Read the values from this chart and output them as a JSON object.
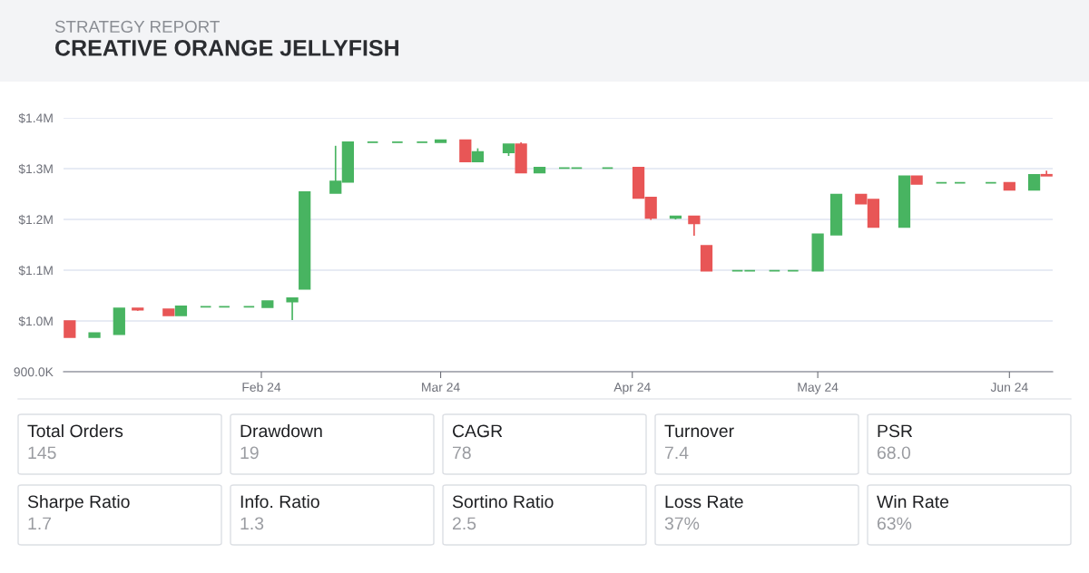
{
  "chart_data": [
    {
      "type": "candlestick",
      "subtitle": "STRATEGY REPORT",
      "title": "CREATIVE ORANGE JELLYFISH",
      "x": [
        "2024-01-01",
        "2024-01-05",
        "2024-01-09",
        "2024-01-12",
        "2024-01-17",
        "2024-01-19",
        "2024-01-23",
        "2024-01-26",
        "2024-01-30",
        "2024-02-02",
        "2024-02-06",
        "2024-02-08",
        "2024-02-13",
        "2024-02-15",
        "2024-02-19",
        "2024-02-23",
        "2024-02-27",
        "2024-03-01",
        "2024-03-05",
        "2024-03-07",
        "2024-03-12",
        "2024-03-14",
        "2024-03-17",
        "2024-03-21",
        "2024-03-23",
        "2024-03-28",
        "2024-04-02",
        "2024-04-04",
        "2024-04-08",
        "2024-04-11",
        "2024-04-13",
        "2024-04-18",
        "2024-04-20",
        "2024-04-24",
        "2024-04-27",
        "2024-05-01",
        "2024-05-04",
        "2024-05-08",
        "2024-05-10",
        "2024-05-15",
        "2024-05-17",
        "2024-05-21",
        "2024-05-24",
        "2024-05-29",
        "2024-06-01",
        "2024-06-05",
        "2024-06-07"
      ],
      "ohlc": [
        [
          1000000,
          1000000,
          968000,
          968000
        ],
        [
          968000,
          976000,
          968000,
          976000
        ],
        [
          974000,
          1025000,
          974000,
          1025000
        ],
        [
          1025000,
          1025000,
          1020000,
          1022000
        ],
        [
          1023000,
          1023000,
          1011000,
          1011000
        ],
        [
          1011000,
          1029000,
          1011000,
          1029000
        ],
        [
          1028000,
          1028000,
          1028000,
          1028000
        ],
        [
          1028000,
          1028000,
          1028000,
          1028000
        ],
        [
          1028000,
          1028000,
          1028000,
          1028000
        ],
        [
          1027000,
          1039000,
          1027000,
          1039000
        ],
        [
          1038000,
          1045000,
          1002000,
          1045000
        ],
        [
          1063000,
          1254000,
          1063000,
          1254000
        ],
        [
          1252000,
          1345000,
          1252000,
          1275000
        ],
        [
          1274000,
          1352000,
          1274000,
          1352000
        ],
        [
          1352000,
          1352000,
          1352000,
          1352000
        ],
        [
          1352000,
          1352000,
          1352000,
          1352000
        ],
        [
          1352000,
          1352000,
          1352000,
          1352000
        ],
        [
          1352000,
          1356000,
          1352000,
          1356000
        ],
        [
          1356000,
          1356000,
          1314000,
          1314000
        ],
        [
          1314000,
          1340000,
          1314000,
          1333000
        ],
        [
          1332000,
          1348000,
          1325000,
          1348000
        ],
        [
          1348000,
          1352000,
          1292000,
          1292000
        ],
        [
          1292000,
          1302000,
          1292000,
          1302000
        ],
        [
          1301000,
          1301000,
          1301000,
          1301000
        ],
        [
          1301000,
          1301000,
          1301000,
          1301000
        ],
        [
          1301000,
          1301000,
          1301000,
          1301000
        ],
        [
          1302000,
          1302000,
          1242000,
          1242000
        ],
        [
          1243000,
          1243000,
          1199000,
          1203000
        ],
        [
          1203000,
          1206000,
          1200000,
          1206000
        ],
        [
          1206000,
          1206000,
          1168000,
          1192000
        ],
        [
          1148000,
          1148000,
          1099000,
          1099000
        ],
        [
          1099000,
          1099000,
          1099000,
          1099000
        ],
        [
          1099000,
          1099000,
          1099000,
          1099000
        ],
        [
          1099000,
          1099000,
          1099000,
          1099000
        ],
        [
          1099000,
          1099000,
          1099000,
          1099000
        ],
        [
          1099000,
          1171000,
          1099000,
          1171000
        ],
        [
          1170000,
          1249000,
          1170000,
          1249000
        ],
        [
          1249000,
          1249000,
          1231000,
          1231000
        ],
        [
          1239000,
          1239000,
          1185000,
          1185000
        ],
        [
          1185000,
          1285000,
          1185000,
          1285000
        ],
        [
          1285000,
          1285000,
          1270000,
          1270000
        ],
        [
          1272000,
          1272000,
          1272000,
          1272000
        ],
        [
          1272000,
          1272000,
          1272000,
          1272000
        ],
        [
          1272000,
          1272000,
          1272000,
          1272000
        ],
        [
          1272000,
          1272000,
          1258000,
          1258000
        ],
        [
          1258000,
          1288000,
          1258000,
          1288000
        ],
        [
          1288000,
          1296000,
          1286000,
          1286000
        ]
      ],
      "colors": [
        "#e85656",
        "#48b461",
        "#48b461",
        "#e85656",
        "#e85656",
        "#48b461",
        "#48b461",
        "#48b461",
        "#48b461",
        "#48b461",
        "#48b461",
        "#48b461",
        "#48b461",
        "#48b461",
        "#48b461",
        "#48b461",
        "#48b461",
        "#48b461",
        "#e85656",
        "#48b461",
        "#48b461",
        "#e85656",
        "#48b461",
        "#48b461",
        "#48b461",
        "#48b461",
        "#e85656",
        "#e85656",
        "#48b461",
        "#e85656",
        "#e85656",
        "#48b461",
        "#48b461",
        "#48b461",
        "#48b461",
        "#48b461",
        "#48b461",
        "#e85656",
        "#e85656",
        "#48b461",
        "#e85656",
        "#48b461",
        "#48b461",
        "#48b461",
        "#e85656",
        "#48b461",
        "#e85656"
      ],
      "xlim": [
        "2023-12-31",
        "2024-06-08"
      ],
      "xticks": [
        {
          "value": "2024-02-01",
          "label": "Feb 24"
        },
        {
          "value": "2024-03-01",
          "label": "Mar 24"
        },
        {
          "value": "2024-04-01",
          "label": "Apr 24"
        },
        {
          "value": "2024-05-01",
          "label": "May 24"
        },
        {
          "value": "2024-06-01",
          "label": "Jun 24"
        }
      ],
      "ylim": [
        900000,
        1400000
      ],
      "yticks": [
        {
          "value": 900000,
          "label": "900.0K"
        },
        {
          "value": 1000000,
          "label": "$1.0M"
        },
        {
          "value": 1100000,
          "label": "$1.1M"
        },
        {
          "value": 1200000,
          "label": "$1.2M"
        },
        {
          "value": 1300000,
          "label": "$1.3M"
        },
        {
          "value": 1400000,
          "label": "$1.4M"
        }
      ],
      "grid": "y"
    },
    {
      "type": "other",
      "categories": [
        "Total Orders",
        "Drawdown",
        "CAGR",
        "Turnover",
        "PSR",
        "Sharpe Ratio",
        "Info. Ratio",
        "Sortino Ratio",
        "Loss Rate",
        "Win Rate"
      ],
      "value_labels": [
        "145",
        "19",
        "78",
        "7.4",
        "68.0",
        "1.7",
        "1.3",
        "2.5",
        "37%",
        "63%"
      ]
    }
  ]
}
